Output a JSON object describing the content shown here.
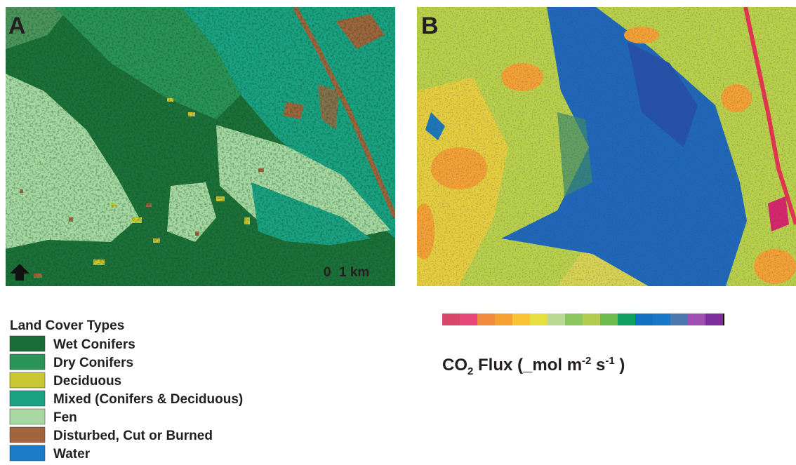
{
  "panel_a": {
    "label": "A",
    "scale_start": "0",
    "scale_end": "1 km"
  },
  "panel_b": {
    "label": "B"
  },
  "legend": {
    "title": "Land Cover Types",
    "items": [
      {
        "label": "Wet Conifers",
        "color": "#1a6b35"
      },
      {
        "label": "Dry Conifers",
        "color": "#2a9457"
      },
      {
        "label": "Deciduous",
        "color": "#c9c832"
      },
      {
        "label": "Mixed (Conifers & Deciduous)",
        "color": "#1aa283"
      },
      {
        "label": "Fen",
        "color": "#a9d9a2"
      },
      {
        "label": "Disturbed, Cut or Burned",
        "color": "#a2643c"
      },
      {
        "label": "Water",
        "color": "#1a7cc8"
      }
    ]
  },
  "colorbar": {
    "colors": [
      "#d8466a",
      "#e8477c",
      "#f08a3c",
      "#f6a232",
      "#f9c232",
      "#e6df40",
      "#b9d994",
      "#8cc65e",
      "#b2cc52",
      "#6fbd4f",
      "#10a062",
      "#1272c2",
      "#1878c8",
      "#4a78ae",
      "#a050b2",
      "#7e2f9e"
    ],
    "title": {
      "base": "CO",
      "sub": "2",
      "text1": " Flux (_mol m",
      "sup1": "-2",
      "text2": " s",
      "sup2": "-1",
      "text3": " )"
    }
  }
}
